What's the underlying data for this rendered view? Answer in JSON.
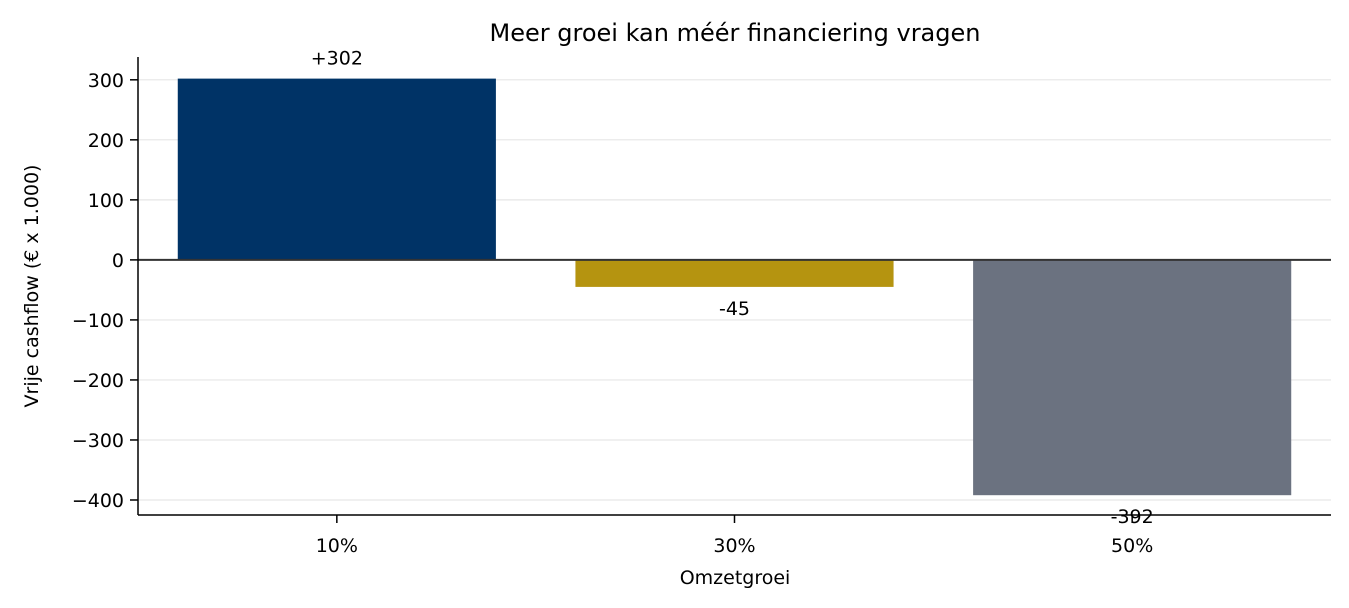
{
  "chart_data": {
    "type": "bar",
    "title": "Meer groei kan méér financiering vragen",
    "xlabel": "Omzetgroei",
    "ylabel": "Vrije cashflow (€ x 1.000)",
    "categories": [
      "10%",
      "30%",
      "50%"
    ],
    "values": [
      302,
      -45,
      -392
    ],
    "data_labels": [
      "+302",
      "-45",
      "-392"
    ],
    "colors": [
      "#003366",
      "#b59410",
      "#6b7280"
    ],
    "yticks": [
      300,
      200,
      100,
      0,
      -100,
      -200,
      -300,
      -400
    ],
    "ytick_labels": [
      "300",
      "200",
      "100",
      "0",
      "−100",
      "−200",
      "−300",
      "−400"
    ],
    "ylim": [
      -425,
      338
    ],
    "grid": true,
    "zero_line": true
  }
}
